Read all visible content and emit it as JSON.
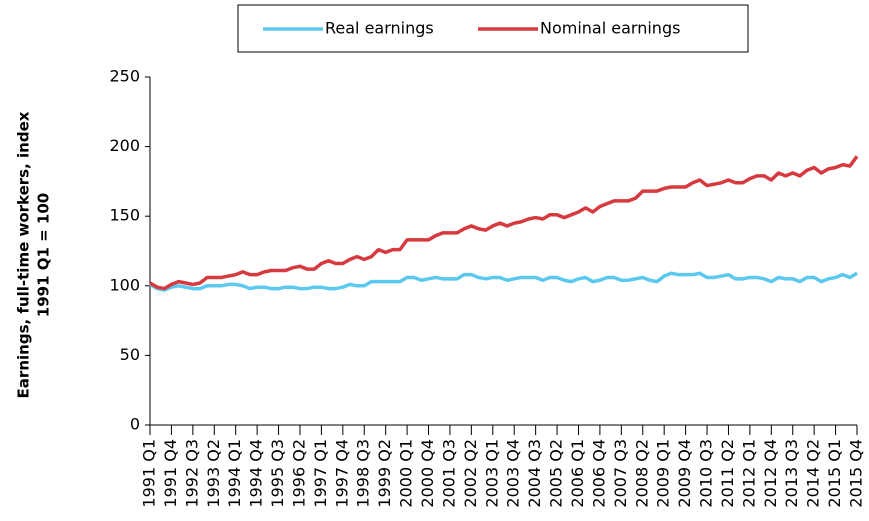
{
  "chart_data": {
    "type": "line",
    "ylabel": [
      "Earnings, full-time workers, index",
      "1991 Q1 = 100"
    ],
    "categories": [
      "1991 Q1",
      null,
      null,
      "1991 Q4",
      null,
      null,
      "1992 Q3",
      null,
      null,
      "1993 Q2",
      null,
      null,
      "1994 Q1",
      null,
      null,
      "1994 Q4",
      null,
      null,
      "1995 Q3",
      null,
      null,
      "1996 Q2",
      null,
      null,
      "1997 Q1",
      null,
      null,
      "1997 Q4",
      null,
      null,
      "1998 Q3",
      null,
      null,
      "1999 Q2",
      null,
      null,
      "2000 Q1",
      null,
      null,
      "2000 Q4",
      null,
      null,
      "2001 Q3",
      null,
      null,
      "2002 Q2",
      null,
      null,
      "2003 Q1",
      null,
      null,
      "2003 Q4",
      null,
      null,
      "2004 Q3",
      null,
      null,
      "2005 Q2",
      null,
      null,
      "2006 Q1",
      null,
      null,
      "2006 Q4",
      null,
      null,
      "2007 Q3",
      null,
      null,
      "2008 Q2",
      null,
      null,
      "2009 Q1",
      null,
      null,
      "2009 Q4",
      null,
      null,
      "2010 Q3",
      null,
      null,
      "2011 Q2",
      null,
      null,
      "2012 Q1",
      null,
      null,
      "2012 Q4",
      null,
      null,
      "2013 Q3",
      null,
      null,
      "2014 Q2",
      null,
      null,
      "2015 Q1",
      null,
      null,
      "2015 Q4"
    ],
    "series": [
      {
        "name": "Real earnings",
        "color": "#5bc8f0",
        "values": [
          101,
          98,
          97,
          99,
          100,
          99,
          98,
          98,
          100,
          100,
          100,
          101,
          101,
          100,
          98,
          99,
          99,
          98,
          98,
          99,
          99,
          98,
          98,
          99,
          99,
          98,
          98,
          99,
          101,
          100,
          100,
          103,
          103,
          103,
          103,
          103,
          106,
          106,
          104,
          105,
          106,
          105,
          105,
          105,
          108,
          108,
          106,
          105,
          106,
          106,
          104,
          105,
          106,
          106,
          106,
          104,
          106,
          106,
          104,
          103,
          105,
          106,
          103,
          104,
          106,
          106,
          104,
          104,
          105,
          106,
          104,
          103,
          107,
          109,
          108,
          108,
          108,
          109,
          106,
          106,
          107,
          108,
          105,
          105,
          106,
          106,
          105,
          103,
          106,
          105,
          105,
          103,
          106,
          106,
          103,
          105,
          106,
          108,
          106,
          109
        ]
      },
      {
        "name": "Nominal earnings",
        "color": "#d63a3f",
        "values": [
          102,
          99,
          98,
          101,
          103,
          102,
          101,
          102,
          106,
          106,
          106,
          107,
          108,
          110,
          108,
          108,
          110,
          111,
          111,
          111,
          113,
          114,
          112,
          112,
          116,
          118,
          116,
          116,
          119,
          121,
          119,
          121,
          126,
          124,
          126,
          126,
          133,
          133,
          133,
          133,
          136,
          138,
          138,
          138,
          141,
          143,
          141,
          140,
          143,
          145,
          143,
          145,
          146,
          148,
          149,
          148,
          151,
          151,
          149,
          151,
          153,
          156,
          153,
          157,
          159,
          161,
          161,
          161,
          163,
          168,
          168,
          168,
          170,
          171,
          171,
          171,
          174,
          176,
          172,
          173,
          174,
          176,
          174,
          174,
          177,
          179,
          179,
          176,
          181,
          179,
          181,
          179,
          183,
          185,
          181,
          184,
          185,
          187,
          186,
          193
        ]
      }
    ],
    "ylim": [
      0,
      250
    ],
    "yticks": [
      0,
      50,
      100,
      150,
      200,
      250
    ]
  }
}
